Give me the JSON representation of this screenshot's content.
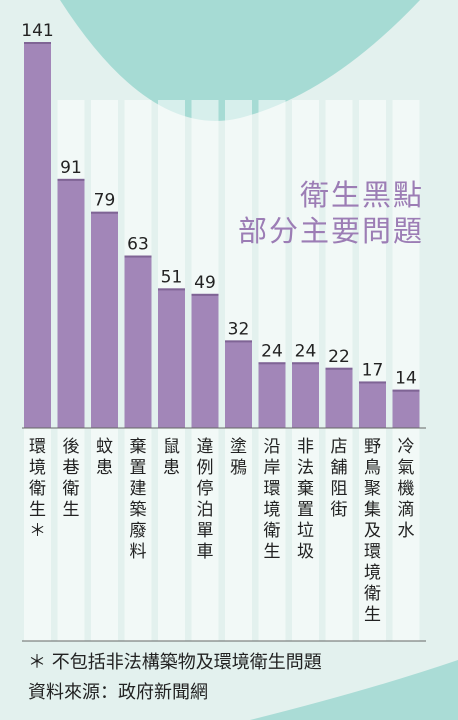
{
  "chart_data": {
    "type": "bar",
    "title": "衛生黑點",
    "subtitle": "部分主要問題",
    "categories": [
      "環境衛生＊",
      "後巷衛生",
      "蚊患",
      "棄置建築廢料",
      "鼠患",
      "違例停泊單車",
      "塗鴉",
      "沿岸環境衛生",
      "非法棄置垃圾",
      "店舖阻街",
      "野鳥聚集及環境衛生",
      "冷氣機滴水"
    ],
    "values": [
      141,
      91,
      79,
      63,
      51,
      49,
      32,
      24,
      24,
      22,
      17,
      14
    ],
    "ylim": [
      0,
      141
    ],
    "grid": false,
    "legend": "none"
  },
  "footnotes": {
    "note": "＊ 不包括非法構築物及環境衛生問題",
    "source": "資料來源：政府新聞網"
  },
  "colors": {
    "bar": "#a286b8",
    "bar_shadow": "#7f6495",
    "column_band": "#ffffff",
    "background": "#e3f1ee",
    "title": "#9c7db5",
    "text": "#222222",
    "accent_wave": "#8ccfc6"
  }
}
